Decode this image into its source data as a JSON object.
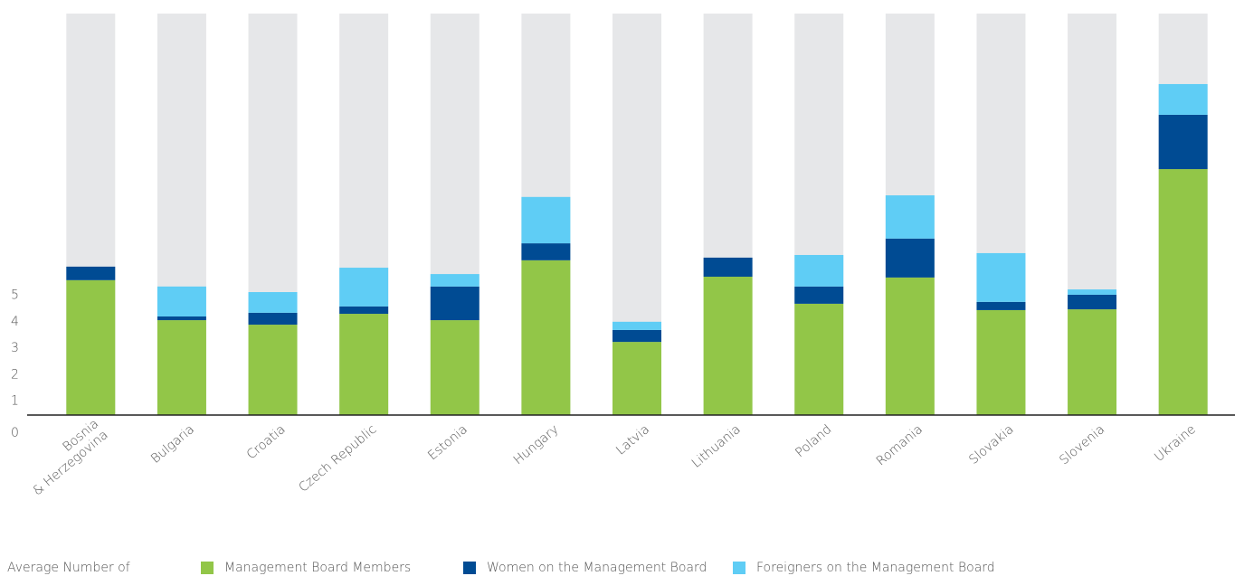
{
  "chart_data": {
    "type": "stacked_bar",
    "categories": [
      "Bosnia\n& Herzegovina",
      "Bulgaria",
      "Croatia",
      "Czech Republic",
      "Estonia",
      "Hungary",
      "Latvia",
      "Lithuania",
      "Poland",
      "Romania",
      "Slovakia",
      "Slovenia",
      "Ukraine"
    ],
    "series": [
      {
        "name": "Management Board Members",
        "color": "#92c648",
        "values": [
          5.09,
          3.58,
          3.41,
          3.82,
          3.58,
          5.84,
          2.76,
          5.22,
          4.2,
          5.19,
          3.96,
          3.99,
          9.28
        ]
      },
      {
        "name": "Women on the Management Board",
        "color": "#004b93",
        "values": [
          0.51,
          0.14,
          0.45,
          0.28,
          1.27,
          0.64,
          0.45,
          0.72,
          0.65,
          1.47,
          0.31,
          0.55,
          2.05
        ]
      },
      {
        "name": "Foreigners on the Management Board",
        "color": "#5fcdf5",
        "values": [
          0,
          1.13,
          0.78,
          1.46,
          0.47,
          1.75,
          0.31,
          0,
          1.19,
          1.63,
          1.84,
          0.2,
          1.16
        ]
      }
    ],
    "legend_title": "Average Number of",
    "background_color": "#e6e7e9",
    "ylim": [
      0,
      15.15
    ],
    "yticks": [
      0,
      1,
      2,
      3,
      4,
      5
    ],
    "grid": false
  }
}
